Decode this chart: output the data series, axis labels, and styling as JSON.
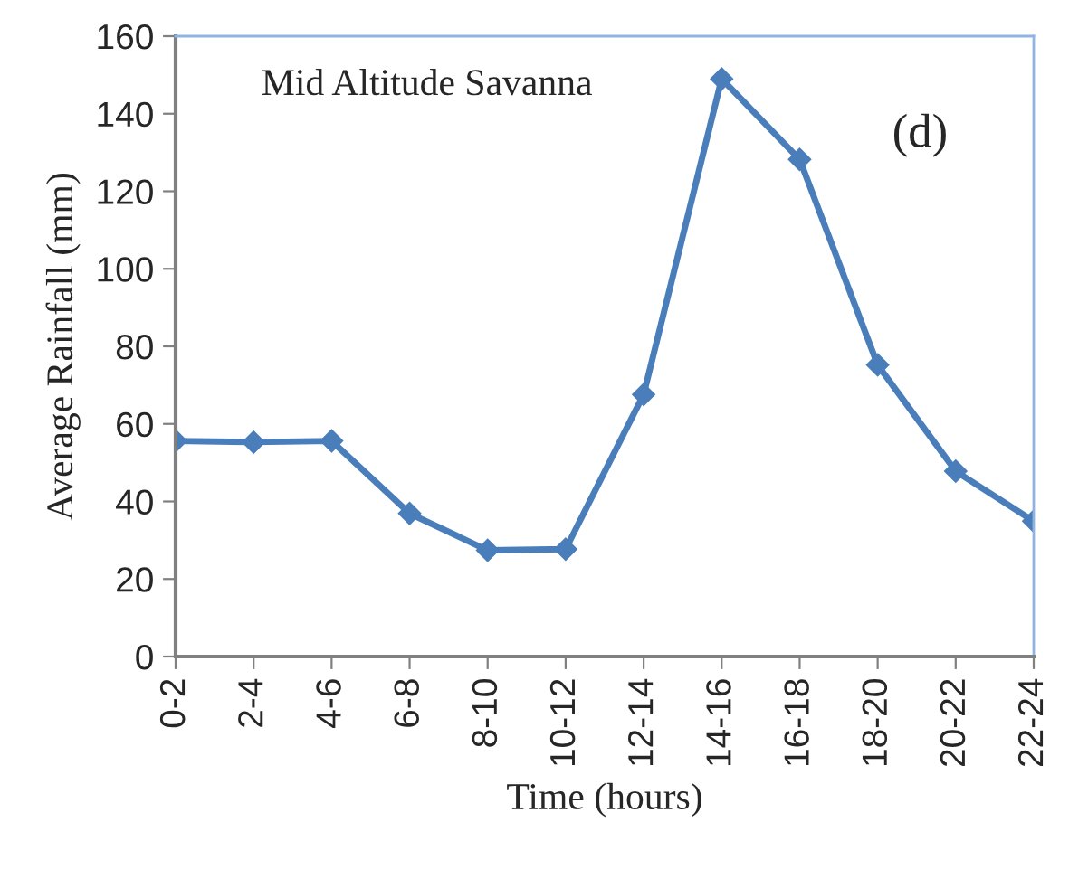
{
  "chart_data": {
    "type": "line",
    "xlabel": "Time (hours)",
    "ylabel": "Average Rainfall (mm)",
    "categories": [
      "0-2",
      "2-4",
      "4-6",
      "6-8",
      "8-10",
      "10-12",
      "12-14",
      "14-16",
      "16-18",
      "18-20",
      "20-22",
      "22-24"
    ],
    "series": [
      {
        "color": "#4a7ebb",
        "values": [
          55.6,
          55.3,
          55.6,
          36.9,
          27.4,
          27.7,
          67.6,
          149,
          128.2,
          75.2,
          47.8,
          34.9
        ]
      }
    ],
    "ylim": [
      0,
      160
    ],
    "yticks": [
      0,
      20,
      40,
      60,
      80,
      100,
      120,
      140,
      160
    ],
    "annotations": [
      "Mid Altitude Savanna",
      "(d)"
    ],
    "marker": "diamond",
    "line_style": "solid",
    "grid": false
  }
}
